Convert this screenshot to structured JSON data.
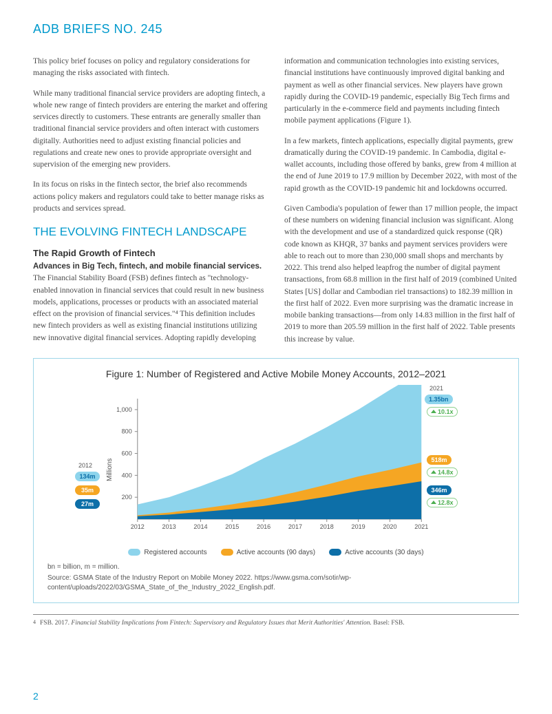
{
  "header": {
    "title": "ADB BRIEFS NO. 245"
  },
  "left_col": {
    "p1": "This policy brief focuses on policy and regulatory considerations for managing the risks associated with fintech.",
    "p2": "While many traditional financial service providers are adopting fintech, a whole new range of fintech providers are entering the market and offering services directly to customers. These entrants are generally smaller than traditional financial service providers and often interact with customers digitally. Authorities need to adjust existing financial policies and regulations and create new ones to provide appropriate oversight and supervision of the emerging new providers.",
    "p3": "In its focus on risks in the fintech sector, the brief also recommends actions policy makers and regulators could take to better manage risks as products and services spread.",
    "section_heading": "THE EVOLVING FINTECH LANDSCAPE",
    "sub_heading": "The Rapid Growth of Fintech",
    "bold_lead": "Advances in Big Tech, fintech, and mobile financial services.",
    "p4": " The Financial Stability Board (FSB) defines fintech as \"technology-enabled innovation in financial services that could result in new business models, applications, processes or products with an associated material effect on the provision of financial services.\"⁴ This definition includes new fintech providers as well as existing financial institutions utilizing new innovative digital financial services. Adopting rapidly developing"
  },
  "right_col": {
    "p1": "information and communication technologies into existing services, financial institutions have continuously improved digital banking and payment as well as other financial services. New players have grown rapidly during the COVID-19 pandemic, especially Big Tech firms and particularly in the e-commerce field and payments including fintech mobile payment applications (Figure 1).",
    "p2": "In a few markets, fintech applications, especially digital payments, grew dramatically during the COVID-19 pandemic. In Cambodia, digital e-wallet accounts, including those offered by banks, grew from 4 million at the end of June 2019 to 17.9 million by December 2022, with most of the rapid growth as the COVID-19 pandemic hit and lockdowns occurred.",
    "p3": "Given Cambodia's population of fewer than 17 million people, the impact of these numbers on widening financial inclusion was significant. Along with the development and use of a standardized quick response (QR) code known as KHQR, 37 banks and payment services providers were able to reach out to more than 230,000 small shops and merchants by 2022. This trend also helped leapfrog the number of digital payment transactions, from 68.8 million in the first half of 2019 (combined United States [US] dollar and Cambodian riel transactions) to 182.39 million in the first half of 2022. Even more surprising was the dramatic increase in mobile banking transactions—from only 14.83 million in the first half of 2019 to more than 205.59 million in the first half of 2022. Table presents this increase by value."
  },
  "figure": {
    "title": "Figure 1: Number of Registered and Active Mobile Money Accounts, 2012–2021",
    "note": "bn = billion, m = million.",
    "source": "Source: GSMA State of the Industry Report on Mobile Money 2022. https://www.gsma.com/sotir/wp-content/uploads/2022/03/GSMA_State_of_the_Industry_2022_English.pdf.",
    "yaxis_title": "Millions",
    "ylim": [
      0,
      1100
    ],
    "yticks": [
      200,
      400,
      600,
      800,
      1000
    ],
    "xticks": [
      "2012",
      "2013",
      "2014",
      "2015",
      "2016",
      "2017",
      "2018",
      "2019",
      "2020",
      "2021"
    ],
    "colors": {
      "registered": "#8dd4ec",
      "active90": "#f5a623",
      "active30": "#0d6fa8",
      "axis": "#888888",
      "grid": "#e6e6e6"
    },
    "series": {
      "registered": [
        134,
        200,
        300,
        410,
        556,
        690,
        840,
        1000,
        1180,
        1350
      ],
      "active90": [
        35,
        60,
        95,
        135,
        185,
        245,
        315,
        390,
        450,
        518
      ],
      "active30": [
        27,
        42,
        65,
        90,
        120,
        160,
        205,
        258,
        300,
        346
      ]
    },
    "left_year": "2012",
    "right_year": "2021",
    "left_pills": {
      "registered": "134m",
      "active90": "35m",
      "active30": "27m"
    },
    "right_pills": {
      "registered": "1.35bn",
      "active90": "518m",
      "active30": "346m"
    },
    "growth": {
      "registered": "10.1x",
      "active90": "14.8x",
      "active30": "12.8x"
    },
    "legend": {
      "registered": "Registered accounts",
      "active90": "Active accounts (90 days)",
      "active30": "Active accounts (30 days)"
    }
  },
  "footnote": {
    "num": "4",
    "text": "FSB. 2017. Financial Stability Implications from Fintech: Supervisory and Regulatory Issues that Merit Authorities' Attention. Basel: FSB."
  },
  "page_num": "2"
}
